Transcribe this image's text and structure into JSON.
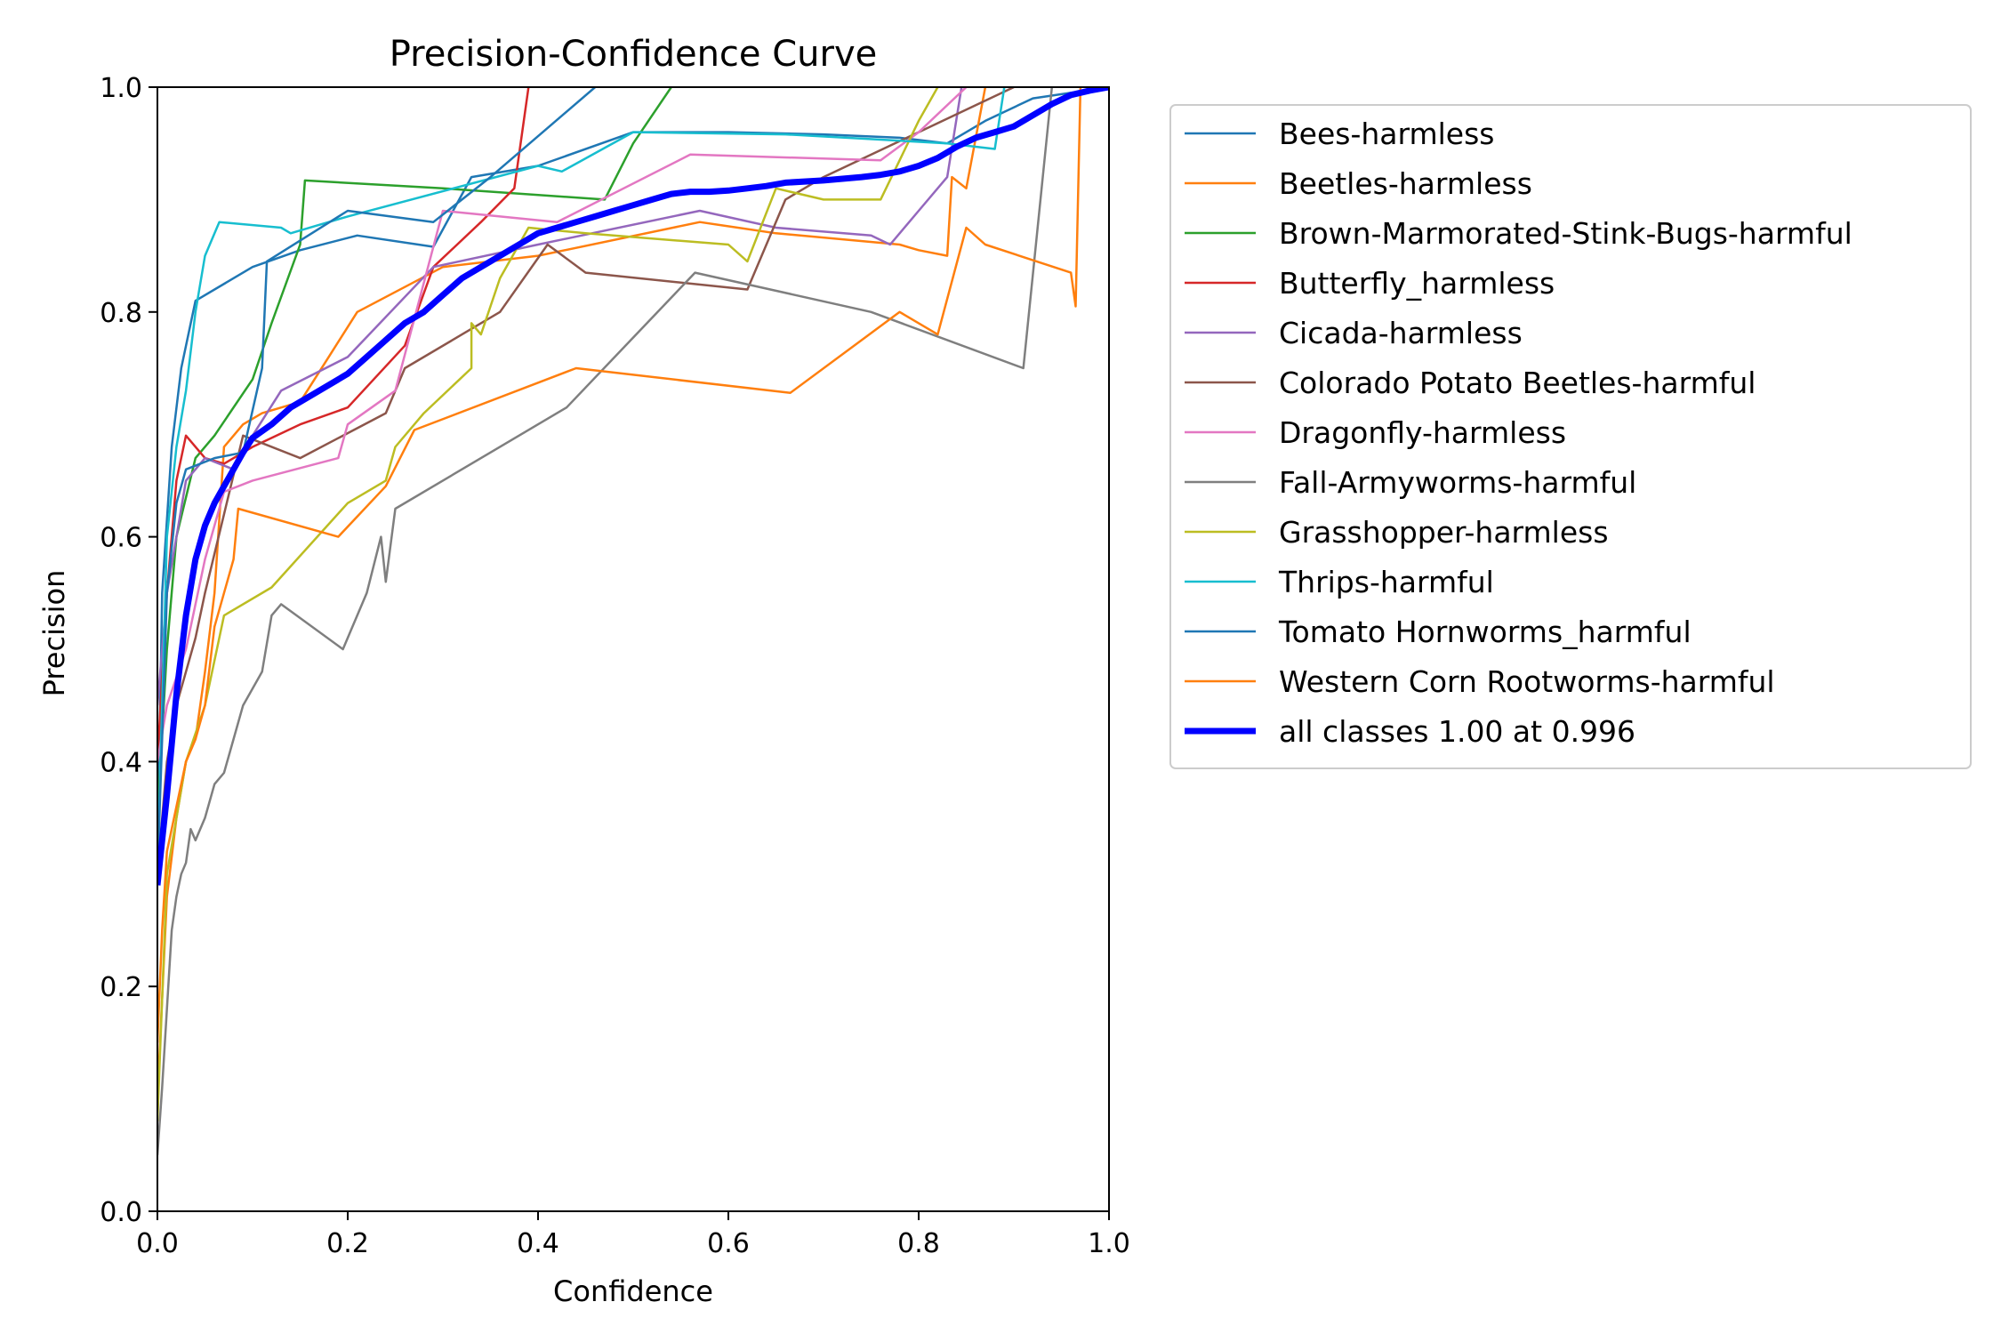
{
  "chart_data": {
    "type": "line",
    "title": "Precision-Confidence Curve",
    "xlabel": "Confidence",
    "ylabel": "Precision",
    "xlim": [
      0,
      1
    ],
    "ylim": [
      0,
      1
    ],
    "xticks": [
      "0.0",
      "0.2",
      "0.4",
      "0.6",
      "0.8",
      "1.0"
    ],
    "yticks": [
      "0.0",
      "0.2",
      "0.4",
      "0.6",
      "0.8",
      "1.0"
    ],
    "grid": false,
    "legend_position": "outside-right",
    "series": [
      {
        "name": "Bees-harmless",
        "color": "#1f77b4",
        "width": 2.5,
        "points": [
          [
            0,
            0.3
          ],
          [
            0.005,
            0.55
          ],
          [
            0.015,
            0.68
          ],
          [
            0.025,
            0.75
          ],
          [
            0.04,
            0.81
          ],
          [
            0.1,
            0.84
          ],
          [
            0.15,
            0.855
          ],
          [
            0.21,
            0.868
          ],
          [
            0.29,
            0.858
          ],
          [
            0.33,
            0.92
          ],
          [
            0.4,
            0.93
          ],
          [
            0.5,
            0.96
          ],
          [
            0.55,
            0.96
          ],
          [
            0.6,
            0.96
          ],
          [
            0.7,
            0.958
          ],
          [
            0.78,
            0.955
          ],
          [
            0.83,
            0.95
          ],
          [
            0.87,
            0.97
          ],
          [
            0.92,
            0.99
          ],
          [
            1.0,
            1.0
          ]
        ]
      },
      {
        "name": "Beetles-harmless",
        "color": "#ff7f0e",
        "width": 2.5,
        "points": [
          [
            0,
            0.1
          ],
          [
            0.01,
            0.28
          ],
          [
            0.02,
            0.35
          ],
          [
            0.03,
            0.4
          ],
          [
            0.04,
            0.42
          ],
          [
            0.05,
            0.48
          ],
          [
            0.06,
            0.55
          ],
          [
            0.07,
            0.68
          ],
          [
            0.09,
            0.7
          ],
          [
            0.11,
            0.71
          ],
          [
            0.15,
            0.72
          ],
          [
            0.18,
            0.76
          ],
          [
            0.21,
            0.8
          ],
          [
            0.3,
            0.84
          ],
          [
            0.4,
            0.85
          ],
          [
            0.57,
            0.88
          ],
          [
            0.65,
            0.87
          ],
          [
            0.78,
            0.86
          ],
          [
            0.8,
            0.855
          ],
          [
            0.83,
            0.85
          ],
          [
            0.835,
            0.92
          ],
          [
            0.85,
            0.91
          ],
          [
            0.87,
            1.0
          ]
        ]
      },
      {
        "name": "Brown-Marmorated-Stink-Bugs-harmful",
        "color": "#2ca02c",
        "width": 2.5,
        "points": [
          [
            0,
            0.35
          ],
          [
            0.01,
            0.5
          ],
          [
            0.02,
            0.6
          ],
          [
            0.04,
            0.67
          ],
          [
            0.06,
            0.69
          ],
          [
            0.1,
            0.74
          ],
          [
            0.12,
            0.79
          ],
          [
            0.15,
            0.86
          ],
          [
            0.155,
            0.917
          ],
          [
            0.3,
            0.91
          ],
          [
            0.47,
            0.9
          ],
          [
            0.5,
            0.95
          ],
          [
            0.54,
            1.0
          ]
        ]
      },
      {
        "name": "Butterfly_harmless",
        "color": "#d62728",
        "width": 2.5,
        "points": [
          [
            0,
            0.4
          ],
          [
            0.01,
            0.55
          ],
          [
            0.02,
            0.65
          ],
          [
            0.03,
            0.69
          ],
          [
            0.05,
            0.67
          ],
          [
            0.07,
            0.665
          ],
          [
            0.1,
            0.68
          ],
          [
            0.15,
            0.7
          ],
          [
            0.2,
            0.715
          ],
          [
            0.26,
            0.77
          ],
          [
            0.29,
            0.84
          ],
          [
            0.34,
            0.88
          ],
          [
            0.375,
            0.91
          ],
          [
            0.39,
            1.0
          ]
        ]
      },
      {
        "name": "Cicada-harmless",
        "color": "#9467bd",
        "width": 2.5,
        "points": [
          [
            0,
            0.45
          ],
          [
            0.01,
            0.55
          ],
          [
            0.03,
            0.65
          ],
          [
            0.05,
            0.67
          ],
          [
            0.08,
            0.66
          ],
          [
            0.1,
            0.69
          ],
          [
            0.13,
            0.73
          ],
          [
            0.2,
            0.76
          ],
          [
            0.29,
            0.84
          ],
          [
            0.4,
            0.86
          ],
          [
            0.57,
            0.89
          ],
          [
            0.65,
            0.875
          ],
          [
            0.75,
            0.868
          ],
          [
            0.77,
            0.86
          ],
          [
            0.8,
            0.89
          ],
          [
            0.83,
            0.92
          ],
          [
            0.845,
            1.0
          ]
        ]
      },
      {
        "name": "Colorado Potato Beetles-harmful",
        "color": "#8c564b",
        "width": 2.5,
        "points": [
          [
            0,
            0.3
          ],
          [
            0.01,
            0.4
          ],
          [
            0.02,
            0.45
          ],
          [
            0.03,
            0.48
          ],
          [
            0.04,
            0.51
          ],
          [
            0.05,
            0.55
          ],
          [
            0.07,
            0.62
          ],
          [
            0.09,
            0.69
          ],
          [
            0.15,
            0.67
          ],
          [
            0.24,
            0.71
          ],
          [
            0.26,
            0.75
          ],
          [
            0.32,
            0.78
          ],
          [
            0.36,
            0.8
          ],
          [
            0.41,
            0.86
          ],
          [
            0.45,
            0.835
          ],
          [
            0.62,
            0.82
          ],
          [
            0.66,
            0.9
          ],
          [
            0.7,
            0.92
          ],
          [
            0.8,
            0.96
          ],
          [
            0.9,
            1.0
          ]
        ]
      },
      {
        "name": "Dragonfly-harmless",
        "color": "#e377c2",
        "width": 2.5,
        "points": [
          [
            0,
            0.4
          ],
          [
            0.01,
            0.45
          ],
          [
            0.03,
            0.5
          ],
          [
            0.05,
            0.58
          ],
          [
            0.07,
            0.64
          ],
          [
            0.1,
            0.65
          ],
          [
            0.19,
            0.67
          ],
          [
            0.2,
            0.7
          ],
          [
            0.25,
            0.73
          ],
          [
            0.3,
            0.89
          ],
          [
            0.42,
            0.88
          ],
          [
            0.56,
            0.94
          ],
          [
            0.76,
            0.935
          ],
          [
            0.8,
            0.96
          ],
          [
            0.85,
            1.0
          ]
        ]
      },
      {
        "name": "Fall-Armyworms-harmful",
        "color": "#7f7f7f",
        "width": 2.5,
        "points": [
          [
            0,
            0.05
          ],
          [
            0.005,
            0.11
          ],
          [
            0.01,
            0.18
          ],
          [
            0.015,
            0.25
          ],
          [
            0.02,
            0.28
          ],
          [
            0.025,
            0.3
          ],
          [
            0.03,
            0.31
          ],
          [
            0.035,
            0.34
          ],
          [
            0.04,
            0.33
          ],
          [
            0.05,
            0.35
          ],
          [
            0.06,
            0.38
          ],
          [
            0.07,
            0.39
          ],
          [
            0.08,
            0.42
          ],
          [
            0.09,
            0.45
          ],
          [
            0.11,
            0.48
          ],
          [
            0.12,
            0.53
          ],
          [
            0.13,
            0.54
          ],
          [
            0.195,
            0.5
          ],
          [
            0.22,
            0.55
          ],
          [
            0.235,
            0.6
          ],
          [
            0.24,
            0.56
          ],
          [
            0.25,
            0.625
          ],
          [
            0.43,
            0.715
          ],
          [
            0.565,
            0.835
          ],
          [
            0.75,
            0.8
          ],
          [
            0.91,
            0.75
          ],
          [
            0.94,
            1.0
          ]
        ]
      },
      {
        "name": "Grasshopper-harmless",
        "color": "#bcbd22",
        "width": 2.5,
        "points": [
          [
            0,
            0.08
          ],
          [
            0.01,
            0.3
          ],
          [
            0.03,
            0.4
          ],
          [
            0.05,
            0.45
          ],
          [
            0.07,
            0.53
          ],
          [
            0.12,
            0.555
          ],
          [
            0.2,
            0.63
          ],
          [
            0.24,
            0.65
          ],
          [
            0.25,
            0.68
          ],
          [
            0.28,
            0.71
          ],
          [
            0.33,
            0.75
          ],
          [
            0.33,
            0.79
          ],
          [
            0.34,
            0.78
          ],
          [
            0.36,
            0.83
          ],
          [
            0.39,
            0.875
          ],
          [
            0.45,
            0.87
          ],
          [
            0.6,
            0.86
          ],
          [
            0.62,
            0.845
          ],
          [
            0.65,
            0.91
          ],
          [
            0.7,
            0.9
          ],
          [
            0.76,
            0.9
          ],
          [
            0.8,
            0.97
          ],
          [
            0.82,
            1.0
          ]
        ]
      },
      {
        "name": "Thrips-harmful",
        "color": "#17becf",
        "width": 2.5,
        "points": [
          [
            0,
            0.3
          ],
          [
            0.005,
            0.45
          ],
          [
            0.01,
            0.6
          ],
          [
            0.02,
            0.68
          ],
          [
            0.03,
            0.73
          ],
          [
            0.04,
            0.8
          ],
          [
            0.05,
            0.85
          ],
          [
            0.065,
            0.88
          ],
          [
            0.13,
            0.875
          ],
          [
            0.14,
            0.87
          ],
          [
            0.2,
            0.885
          ],
          [
            0.4,
            0.93
          ],
          [
            0.425,
            0.925
          ],
          [
            0.5,
            0.96
          ],
          [
            0.66,
            0.958
          ],
          [
            0.83,
            0.95
          ],
          [
            0.88,
            0.945
          ],
          [
            0.89,
            1.0
          ]
        ]
      },
      {
        "name": "Tomato Hornworms_harmful",
        "color": "#1f77b4",
        "width": 2.5,
        "points": [
          [
            0,
            0.3
          ],
          [
            0.005,
            0.42
          ],
          [
            0.01,
            0.55
          ],
          [
            0.02,
            0.63
          ],
          [
            0.03,
            0.66
          ],
          [
            0.06,
            0.67
          ],
          [
            0.09,
            0.675
          ],
          [
            0.11,
            0.75
          ],
          [
            0.115,
            0.845
          ],
          [
            0.2,
            0.89
          ],
          [
            0.29,
            0.88
          ],
          [
            0.35,
            0.92
          ],
          [
            0.46,
            1.0
          ]
        ]
      },
      {
        "name": "Western Corn Rootworms-harmful",
        "color": "#ff7f0e",
        "width": 2.5,
        "points": [
          [
            0,
            0.15
          ],
          [
            0.005,
            0.25
          ],
          [
            0.01,
            0.32
          ],
          [
            0.03,
            0.4
          ],
          [
            0.04,
            0.42
          ],
          [
            0.05,
            0.45
          ],
          [
            0.06,
            0.52
          ],
          [
            0.08,
            0.58
          ],
          [
            0.085,
            0.625
          ],
          [
            0.19,
            0.6
          ],
          [
            0.24,
            0.645
          ],
          [
            0.27,
            0.695
          ],
          [
            0.44,
            0.75
          ],
          [
            0.665,
            0.728
          ],
          [
            0.78,
            0.8
          ],
          [
            0.82,
            0.78
          ],
          [
            0.85,
            0.875
          ],
          [
            0.87,
            0.86
          ],
          [
            0.96,
            0.835
          ],
          [
            0.965,
            0.805
          ],
          [
            0.97,
            1.0
          ]
        ]
      },
      {
        "name": "all classes 1.00 at 0.996",
        "color": "#0000ff",
        "width": 7,
        "points": [
          [
            0,
            0.29
          ],
          [
            0.005,
            0.33
          ],
          [
            0.01,
            0.37
          ],
          [
            0.02,
            0.46
          ],
          [
            0.03,
            0.53
          ],
          [
            0.04,
            0.58
          ],
          [
            0.05,
            0.61
          ],
          [
            0.06,
            0.63
          ],
          [
            0.07,
            0.645
          ],
          [
            0.08,
            0.66
          ],
          [
            0.09,
            0.675
          ],
          [
            0.1,
            0.688
          ],
          [
            0.12,
            0.7
          ],
          [
            0.14,
            0.715
          ],
          [
            0.16,
            0.725
          ],
          [
            0.18,
            0.735
          ],
          [
            0.2,
            0.745
          ],
          [
            0.22,
            0.76
          ],
          [
            0.24,
            0.775
          ],
          [
            0.26,
            0.79
          ],
          [
            0.28,
            0.8
          ],
          [
            0.3,
            0.815
          ],
          [
            0.32,
            0.83
          ],
          [
            0.34,
            0.84
          ],
          [
            0.36,
            0.85
          ],
          [
            0.38,
            0.86
          ],
          [
            0.4,
            0.87
          ],
          [
            0.42,
            0.875
          ],
          [
            0.44,
            0.88
          ],
          [
            0.46,
            0.885
          ],
          [
            0.48,
            0.89
          ],
          [
            0.5,
            0.895
          ],
          [
            0.52,
            0.9
          ],
          [
            0.54,
            0.905
          ],
          [
            0.56,
            0.907
          ],
          [
            0.58,
            0.907
          ],
          [
            0.6,
            0.908
          ],
          [
            0.62,
            0.91
          ],
          [
            0.64,
            0.912
          ],
          [
            0.66,
            0.915
          ],
          [
            0.7,
            0.917
          ],
          [
            0.74,
            0.92
          ],
          [
            0.76,
            0.922
          ],
          [
            0.78,
            0.925
          ],
          [
            0.8,
            0.93
          ],
          [
            0.82,
            0.937
          ],
          [
            0.84,
            0.947
          ],
          [
            0.86,
            0.955
          ],
          [
            0.88,
            0.96
          ],
          [
            0.9,
            0.965
          ],
          [
            0.92,
            0.975
          ],
          [
            0.94,
            0.985
          ],
          [
            0.96,
            0.993
          ],
          [
            0.98,
            0.997
          ],
          [
            1.0,
            1.0
          ]
        ]
      }
    ]
  }
}
